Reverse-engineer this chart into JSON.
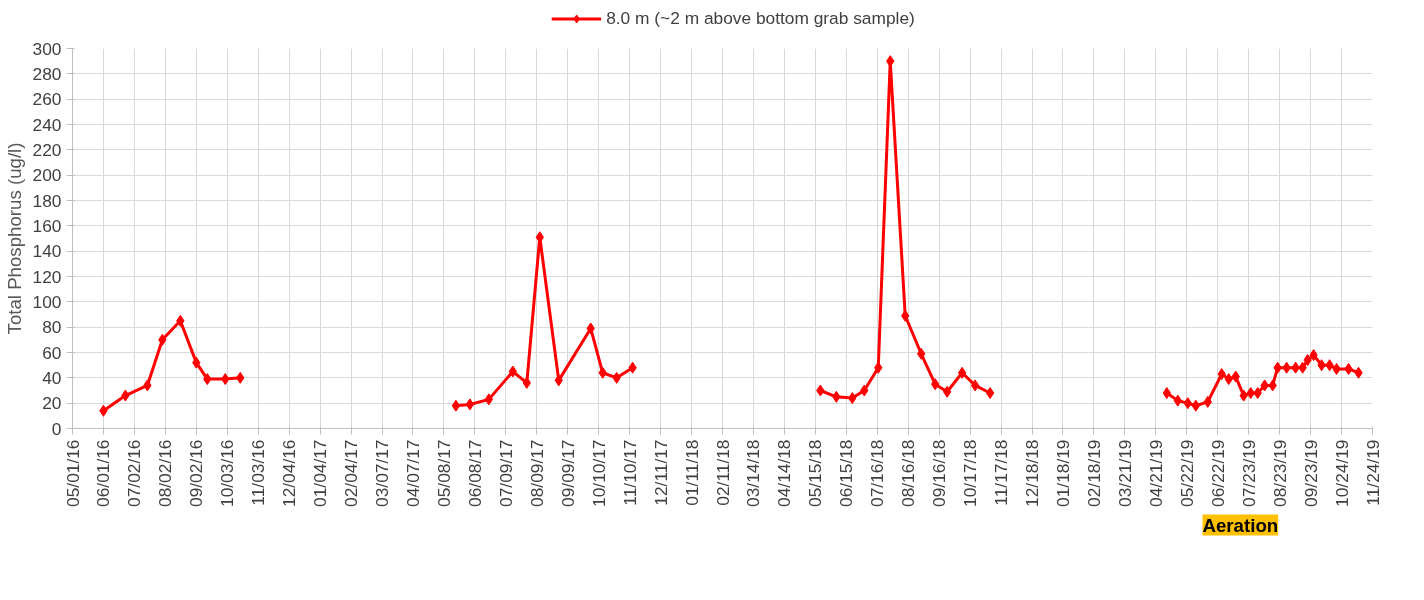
{
  "chart_data": {
    "type": "line",
    "ylabel": "Total Phosphorus (ug/l)",
    "legend": "top",
    "grid": true,
    "marker": "diamond",
    "line_style": "solid",
    "x": [
      "2016-06-01",
      "2016-06-23",
      "2016-07-15",
      "2016-07-30",
      "2016-08-17",
      "2016-09-02",
      "2016-09-13",
      "2016-10-01",
      "2016-10-16",
      "2017-01-15",
      "2017-05-20",
      "2017-06-03",
      "2017-06-22",
      "2017-07-16",
      "2017-07-30",
      "2017-08-12",
      "2017-08-31",
      "2017-10-02",
      "2017-10-14",
      "2017-10-28",
      "2017-11-13",
      "2018-02-15",
      "2018-05-20",
      "2018-06-05",
      "2018-06-21",
      "2018-07-03",
      "2018-07-17",
      "2018-07-29",
      "2018-08-13",
      "2018-08-29",
      "2018-09-12",
      "2018-09-24",
      "2018-10-09",
      "2018-10-22",
      "2018-11-06",
      "2019-02-01",
      "2019-05-02",
      "2019-05-13",
      "2019-05-23",
      "2019-05-31",
      "2019-06-12",
      "2019-06-26",
      "2019-07-03",
      "2019-07-10",
      "2019-07-18",
      "2019-07-25",
      "2019-08-01",
      "2019-08-08",
      "2019-08-16",
      "2019-08-21",
      "2019-08-30",
      "2019-09-08",
      "2019-09-15",
      "2019-09-20",
      "2019-09-26",
      "2019-10-04",
      "2019-10-12",
      "2019-10-19",
      "2019-10-31",
      "2019-11-10"
    ],
    "series": [
      {
        "name": "8.0 m (~2 m above bottom grab sample)",
        "color": "#ff0000",
        "values": [
          14,
          26,
          34,
          70,
          85,
          52,
          39,
          39,
          40,
          null,
          18,
          19,
          23,
          45,
          36,
          151,
          38,
          79,
          44,
          40,
          48,
          null,
          30,
          25,
          24,
          30,
          48,
          290,
          89,
          59,
          35,
          29,
          44,
          34,
          28,
          null,
          28,
          22,
          20,
          18,
          21,
          43,
          39,
          41,
          26,
          28,
          28,
          34,
          34,
          48,
          48,
          48,
          48,
          54,
          58,
          50,
          50,
          47,
          47,
          44
        ]
      }
    ],
    "xlim": [
      "2016-05-01",
      "2019-11-24"
    ],
    "xticks": [
      {
        "value": "2016-05-01",
        "label": "05/01/16"
      },
      {
        "value": "2016-06-01",
        "label": "06/01/16"
      },
      {
        "value": "2016-07-02",
        "label": "07/02/16"
      },
      {
        "value": "2016-08-02",
        "label": "08/02/16"
      },
      {
        "value": "2016-09-02",
        "label": "09/02/16"
      },
      {
        "value": "2016-10-03",
        "label": "10/03/16"
      },
      {
        "value": "2016-11-03",
        "label": "11/03/16"
      },
      {
        "value": "2016-12-04",
        "label": "12/04/16"
      },
      {
        "value": "2017-01-04",
        "label": "01/04/17"
      },
      {
        "value": "2017-02-04",
        "label": "02/04/17"
      },
      {
        "value": "2017-03-07",
        "label": "03/07/17"
      },
      {
        "value": "2017-04-07",
        "label": "04/07/17"
      },
      {
        "value": "2017-05-08",
        "label": "05/08/17"
      },
      {
        "value": "2017-06-08",
        "label": "06/08/17"
      },
      {
        "value": "2017-07-09",
        "label": "07/09/17"
      },
      {
        "value": "2017-08-09",
        "label": "08/09/17"
      },
      {
        "value": "2017-09-09",
        "label": "09/09/17"
      },
      {
        "value": "2017-10-10",
        "label": "10/10/17"
      },
      {
        "value": "2017-11-10",
        "label": "11/10/17"
      },
      {
        "value": "2017-12-11",
        "label": "12/11/17"
      },
      {
        "value": "2018-01-11",
        "label": "01/11/18"
      },
      {
        "value": "2018-02-11",
        "label": "02/11/18"
      },
      {
        "value": "2018-03-14",
        "label": "03/14/18"
      },
      {
        "value": "2018-04-14",
        "label": "04/14/18"
      },
      {
        "value": "2018-05-15",
        "label": "05/15/18"
      },
      {
        "value": "2018-06-15",
        "label": "06/15/18"
      },
      {
        "value": "2018-07-16",
        "label": "07/16/18"
      },
      {
        "value": "2018-08-16",
        "label": "08/16/18"
      },
      {
        "value": "2018-09-16",
        "label": "09/16/18"
      },
      {
        "value": "2018-10-17",
        "label": "10/17/18"
      },
      {
        "value": "2018-11-17",
        "label": "11/17/18"
      },
      {
        "value": "2018-12-18",
        "label": "12/18/18"
      },
      {
        "value": "2019-01-18",
        "label": "01/18/19"
      },
      {
        "value": "2019-02-18",
        "label": "02/18/19"
      },
      {
        "value": "2019-03-21",
        "label": "03/21/19"
      },
      {
        "value": "2019-04-21",
        "label": "04/21/19"
      },
      {
        "value": "2019-05-22",
        "label": "05/22/19"
      },
      {
        "value": "2019-06-22",
        "label": "06/22/19"
      },
      {
        "value": "2019-07-23",
        "label": "07/23/19"
      },
      {
        "value": "2019-08-23",
        "label": "08/23/19"
      },
      {
        "value": "2019-09-23",
        "label": "09/23/19"
      },
      {
        "value": "2019-10-24",
        "label": "10/24/19"
      },
      {
        "value": "2019-11-24",
        "label": "11/24/19"
      }
    ],
    "ylim": [
      0,
      300
    ],
    "yticks": [
      0,
      20,
      40,
      60,
      80,
      100,
      120,
      140,
      160,
      180,
      200,
      220,
      240,
      260,
      280,
      300
    ],
    "annotations": [
      "Aeration"
    ]
  }
}
